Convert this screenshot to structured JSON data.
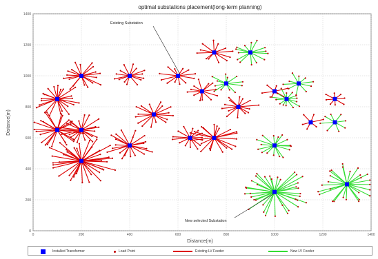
{
  "chart_data": {
    "type": "scatter",
    "title": "optimal substations placement(long-term planning)",
    "xlabel": "Distance(m)",
    "ylabel": "Distance(m)",
    "xlim": [
      0,
      1400
    ],
    "ylim": [
      0,
      1400
    ],
    "xticks": [
      0,
      200,
      400,
      600,
      800,
      1000,
      1200,
      1400
    ],
    "yticks": [
      0,
      200,
      400,
      600,
      800,
      1000,
      1200,
      1400
    ],
    "grid": true,
    "legend_position": "bottom",
    "colors": {
      "existing_feeder": "#dd0000",
      "new_feeder": "#33dd33",
      "load_point": "#c00000",
      "transformer": "#0000ff"
    },
    "annotations": [
      {
        "text": "Existing Substation",
        "x": 616,
        "y": 1000
      },
      {
        "text": "New selected Substation",
        "x": 1000,
        "y": 250
      }
    ],
    "legend": [
      {
        "label": "Installed Transformer",
        "symbol": "square"
      },
      {
        "label": "Load Point",
        "symbol": "dot"
      },
      {
        "label": "Existing LV Feeder",
        "symbol": "red-line"
      },
      {
        "label": "New LV Feeder",
        "symbol": "green-line"
      }
    ],
    "substations": [
      {
        "x": 200,
        "y": 1000,
        "kind": "existing",
        "loads": 18,
        "radius": 95
      },
      {
        "x": 400,
        "y": 1000,
        "kind": "existing",
        "loads": 14,
        "radius": 75
      },
      {
        "x": 600,
        "y": 1000,
        "kind": "existing",
        "loads": 12,
        "radius": 75
      },
      {
        "x": 750,
        "y": 1150,
        "kind": "existing",
        "loads": 12,
        "radius": 75
      },
      {
        "x": 100,
        "y": 850,
        "kind": "existing",
        "loads": 22,
        "radius": 110
      },
      {
        "x": 500,
        "y": 750,
        "kind": "existing",
        "loads": 16,
        "radius": 85
      },
      {
        "x": 700,
        "y": 900,
        "kind": "existing",
        "loads": 12,
        "radius": 75
      },
      {
        "x": 850,
        "y": 800,
        "kind": "existing",
        "loads": 14,
        "radius": 85
      },
      {
        "x": 100,
        "y": 650,
        "kind": "existing",
        "loads": 24,
        "radius": 120
      },
      {
        "x": 200,
        "y": 650,
        "kind": "existing",
        "loads": 20,
        "radius": 100
      },
      {
        "x": 400,
        "y": 550,
        "kind": "existing",
        "loads": 20,
        "radius": 100
      },
      {
        "x": 650,
        "y": 600,
        "kind": "existing",
        "loads": 14,
        "radius": 80
      },
      {
        "x": 750,
        "y": 600,
        "kind": "existing",
        "loads": 20,
        "radius": 110
      },
      {
        "x": 200,
        "y": 450,
        "kind": "existing",
        "loads": 36,
        "radius": 150
      },
      {
        "x": 1000,
        "y": 900,
        "kind": "existing",
        "loads": 6,
        "radius": 55
      },
      {
        "x": 1150,
        "y": 700,
        "kind": "existing",
        "loads": 6,
        "radius": 60
      },
      {
        "x": 1250,
        "y": 850,
        "kind": "existing",
        "loads": 8,
        "radius": 60
      },
      {
        "x": 900,
        "y": 1150,
        "kind": "new",
        "loads": 14,
        "radius": 80
      },
      {
        "x": 800,
        "y": 950,
        "kind": "new",
        "loads": 12,
        "radius": 70
      },
      {
        "x": 1100,
        "y": 950,
        "kind": "new",
        "loads": 10,
        "radius": 75
      },
      {
        "x": 1050,
        "y": 850,
        "kind": "new",
        "loads": 14,
        "radius": 70
      },
      {
        "x": 1250,
        "y": 700,
        "kind": "new",
        "loads": 8,
        "radius": 60
      },
      {
        "x": 1000,
        "y": 550,
        "kind": "new",
        "loads": 16,
        "radius": 90
      },
      {
        "x": 1000,
        "y": 250,
        "kind": "new",
        "loads": 36,
        "radius": 150
      },
      {
        "x": 1300,
        "y": 300,
        "kind": "new",
        "loads": 26,
        "radius": 130
      }
    ]
  }
}
